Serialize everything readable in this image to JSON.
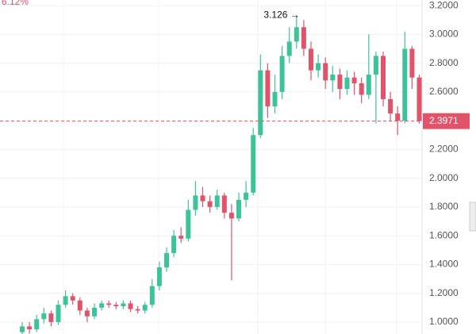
{
  "chart_data": {
    "type": "candlestick",
    "change_label": "6.12%",
    "annotation": "3.126 →",
    "open": [
      0.93,
      0.97,
      0.95,
      1.02,
      1.06,
      1.0,
      1.12,
      1.18,
      1.15,
      1.08,
      1.04,
      1.1,
      1.13,
      1.12,
      1.11,
      1.13,
      1.09,
      1.08,
      1.12,
      1.25,
      1.38,
      1.48,
      1.6,
      1.58,
      1.78,
      1.88,
      1.84,
      1.8,
      1.88,
      1.76,
      1.72,
      1.85,
      1.9,
      2.3,
      2.75,
      2.5,
      2.6,
      2.85,
      2.95,
      3.05,
      2.9,
      2.75,
      2.8,
      2.68,
      2.72,
      2.62,
      2.7,
      2.66,
      2.58,
      2.72,
      2.85,
      2.55,
      2.45,
      2.4,
      2.9,
      2.7
    ],
    "high": [
      1.0,
      1.0,
      1.05,
      1.1,
      1.08,
      1.15,
      1.22,
      1.2,
      1.17,
      1.1,
      1.13,
      1.15,
      1.15,
      1.14,
      1.15,
      1.15,
      1.11,
      1.14,
      1.3,
      1.42,
      1.52,
      1.64,
      1.66,
      1.85,
      1.98,
      1.94,
      1.88,
      1.92,
      1.9,
      1.82,
      1.9,
      1.98,
      2.35,
      2.86,
      2.8,
      2.72,
      2.92,
      3.05,
      3.126,
      3.1,
      2.95,
      2.86,
      2.84,
      2.78,
      2.76,
      2.75,
      2.74,
      2.7,
      3.0,
      2.88,
      2.88,
      2.6,
      2.5,
      3.02,
      2.92,
      2.72
    ],
    "low": [
      0.9,
      0.92,
      0.93,
      0.99,
      0.97,
      0.98,
      1.1,
      1.12,
      1.05,
      1.0,
      1.02,
      1.08,
      1.1,
      1.09,
      1.09,
      1.07,
      1.06,
      1.06,
      1.1,
      1.22,
      1.35,
      1.45,
      1.55,
      1.56,
      1.74,
      1.8,
      1.76,
      1.78,
      1.72,
      1.29,
      1.7,
      1.8,
      1.88,
      2.28,
      2.42,
      2.45,
      2.55,
      2.8,
      2.9,
      2.85,
      2.68,
      2.7,
      2.62,
      2.6,
      2.55,
      2.58,
      2.58,
      2.52,
      2.55,
      2.38,
      2.5,
      2.4,
      2.3,
      2.38,
      2.62,
      2.38
    ],
    "close": [
      0.97,
      0.95,
      1.02,
      1.06,
      1.0,
      1.12,
      1.18,
      1.15,
      1.08,
      1.04,
      1.1,
      1.13,
      1.12,
      1.11,
      1.13,
      1.09,
      1.08,
      1.12,
      1.25,
      1.38,
      1.48,
      1.6,
      1.58,
      1.78,
      1.88,
      1.84,
      1.8,
      1.88,
      1.76,
      1.72,
      1.85,
      1.9,
      2.3,
      2.75,
      2.5,
      2.6,
      2.85,
      2.95,
      3.05,
      2.9,
      2.75,
      2.8,
      2.68,
      2.72,
      2.62,
      2.7,
      2.66,
      2.58,
      2.72,
      2.85,
      2.55,
      2.45,
      2.4,
      2.9,
      2.7,
      2.3971
    ],
    "up_color": "#3cc39a",
    "down_color": "#e2536a",
    "last_price": 2.3971,
    "ylim": [
      0.917,
      3.239
    ],
    "yticks": [
      {
        "value": 1.0,
        "label": "1.0000"
      },
      {
        "value": 1.2,
        "label": "1.2000"
      },
      {
        "value": 1.4,
        "label": "1.4000"
      },
      {
        "value": 1.6,
        "label": "1.6000"
      },
      {
        "value": 1.8,
        "label": "1.8000"
      },
      {
        "value": 2.0,
        "label": "2.0000"
      },
      {
        "value": 2.2,
        "label": "2.2000"
      },
      {
        "value": 2.4,
        "label": "2.4000"
      },
      {
        "value": 2.6,
        "label": "2.6000"
      },
      {
        "value": 2.8,
        "label": "2.8000"
      },
      {
        "value": 3.0,
        "label": "3.0000"
      },
      {
        "value": 3.2,
        "label": "3.2000"
      }
    ],
    "grid": true
  }
}
